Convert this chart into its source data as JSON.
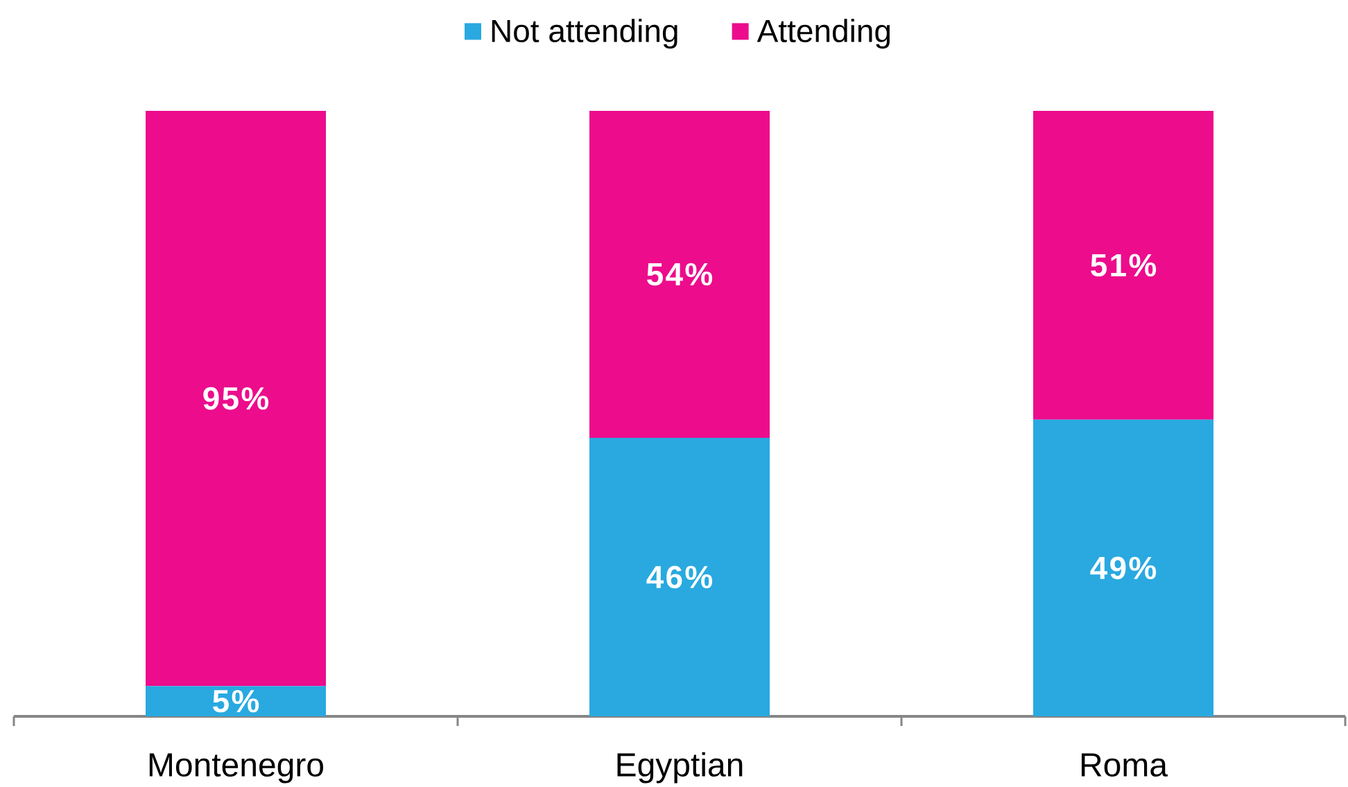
{
  "chart_data": {
    "type": "bar",
    "stacked": true,
    "categories": [
      "Montenegro",
      "Egyptian",
      "Roma"
    ],
    "series": [
      {
        "name": "Not attending",
        "color": "#29a9e0",
        "values": [
          5,
          46,
          49
        ],
        "value_labels": [
          "5%",
          "46%",
          "49%"
        ]
      },
      {
        "name": "Attending",
        "color": "#ec0c8c",
        "values": [
          95,
          54,
          51
        ],
        "value_labels": [
          "95%",
          "54%",
          "51%"
        ]
      }
    ],
    "ylim": [
      0,
      100
    ],
    "tick_labels": "x",
    "legend": "top"
  }
}
